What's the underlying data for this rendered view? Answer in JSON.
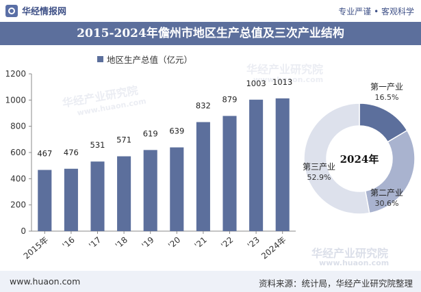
{
  "header": {
    "brand": "华经情报网",
    "slogan": "专业严谨 • 客观科学"
  },
  "chart_data": [
    {
      "type": "bar",
      "title": "2015-2024年儋州市地区生产总值及三次产业结构",
      "legend": "地区生产总值（亿元）",
      "categories": [
        "2015年",
        "'16",
        "'17",
        "'18",
        "'19",
        "'20",
        "'21",
        "'22",
        "'23",
        "2024年"
      ],
      "values": [
        467,
        476,
        531,
        571,
        619,
        639,
        832,
        879,
        1003,
        1013
      ],
      "ylim": [
        0,
        1200
      ],
      "yticks": [
        0,
        200,
        400,
        600,
        800,
        1000,
        1200
      ],
      "color": "#5c6f9c"
    },
    {
      "type": "pie",
      "center_label": "2024年",
      "slices": [
        {
          "name": "第一产业",
          "value": 16.5,
          "label": "16.5%",
          "color": "#5c6f9c"
        },
        {
          "name": "第二产业",
          "value": 30.6,
          "label": "30.6%",
          "color": "#a9b3cf"
        },
        {
          "name": "第三产业",
          "value": 52.9,
          "label": "52.9%",
          "color": "#dde1ec"
        }
      ]
    }
  ],
  "watermarks": [
    "华经产业研究院",
    "www.huaon.com"
  ],
  "footer": {
    "url": "www.huaon.com",
    "source": "资料来源：统计局，华经产业研究院整理"
  }
}
